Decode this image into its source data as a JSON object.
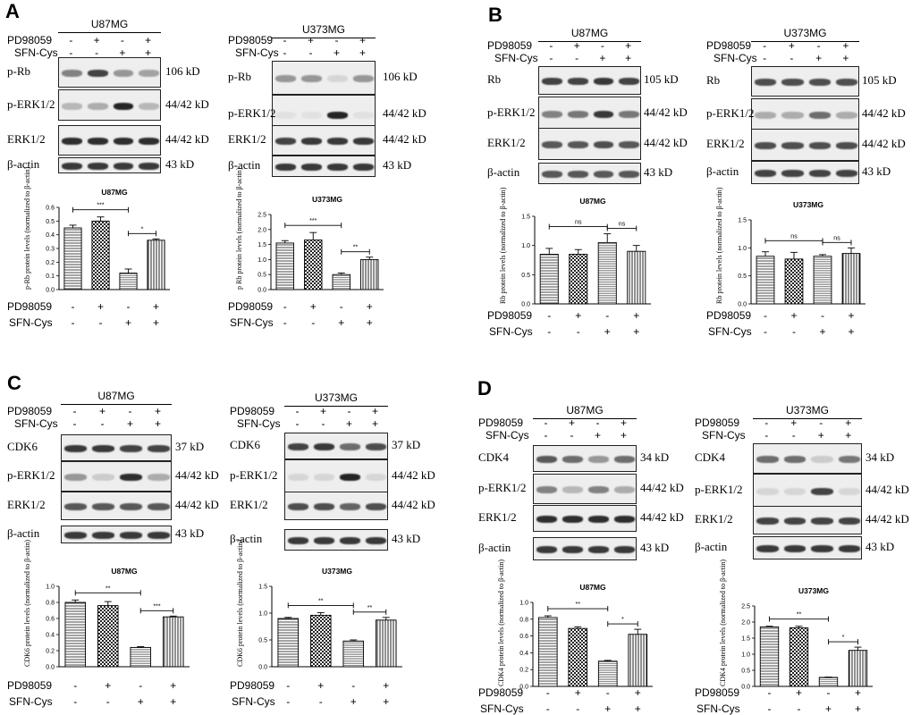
{
  "letters": [
    "A",
    "B",
    "C",
    "D"
  ],
  "panels": [
    {
      "letter": "A",
      "blots": [
        {
          "cell": "U87MG",
          "rows": [
            "p-Rb",
            "p-ERK1/2",
            "ERK1/2",
            "β-actin"
          ],
          "kd": [
            "106 kD",
            "44/42 kD",
            "44/42 kD",
            "43 kD"
          ]
        },
        {
          "cell": "U373MG",
          "rows": [
            "p-Rb",
            "p-ERK1/2",
            "ERK1/2",
            "β-actin"
          ],
          "kd": [
            "106 kD",
            "44/42 kD",
            "44/42 kD",
            "43 kD"
          ]
        }
      ]
    },
    {
      "letter": "B",
      "blots": [
        {
          "cell": "U87MG",
          "rows": [
            "Rb",
            "p-ERK1/2",
            "ERK1/2",
            "β-actin"
          ],
          "kd": [
            "105 kD",
            "44/42 kD",
            "44/42 kD",
            "43 kD"
          ]
        },
        {
          "cell": "U373MG",
          "rows": [
            "Rb",
            "p-ERK1/2",
            "ERK1/2",
            "β-actin"
          ],
          "kd": [
            "105 kD",
            "44/42 kD",
            "44/42 kD",
            "43 kD"
          ]
        }
      ]
    },
    {
      "letter": "C",
      "blots": [
        {
          "cell": "U87MG",
          "rows": [
            "CDK6",
            "p-ERK1/2",
            "ERK1/2",
            "β-actin"
          ],
          "kd": [
            "37 kD",
            "44/42 kD",
            "44/42 kD",
            "43 kD"
          ]
        },
        {
          "cell": "U373MG",
          "rows": [
            "CDK6",
            "p-ERK1/2",
            "ERK1/2",
            "β-actin"
          ],
          "kd": [
            "37 kD",
            "44/42 kD",
            "44/42 kD",
            "43 kD"
          ]
        }
      ]
    },
    {
      "letter": "D",
      "blots": [
        {
          "cell": "U87MG",
          "rows": [
            "CDK4",
            "p-ERK1/2",
            "ERK1/2",
            "β-actin"
          ],
          "kd": [
            "34 kD",
            "44/42 kD",
            "44/42 kD",
            "43 kD"
          ]
        },
        {
          "cell": "U373MG",
          "rows": [
            "CDK4",
            "p-ERK1/2",
            "ERK1/2",
            "β-actin"
          ],
          "kd": [
            "34 kD",
            "44/42 kD",
            "44/42 kD",
            "43 kD"
          ]
        }
      ]
    }
  ],
  "conditions": {
    "pd_label": "PD98059",
    "sfn_label": "SFN-Cys",
    "pd_signs": [
      "-",
      "+",
      "-",
      "+"
    ],
    "sfn_signs": [
      "-",
      "-",
      "+",
      "+"
    ]
  },
  "chart_data": [
    {
      "type": "bar",
      "title": "U87MG",
      "ylabel": "p-Rb protein levels (normalized to β-actin)",
      "yticks": [
        "0.0",
        "0.1",
        "0.2",
        "0.3",
        "0.4",
        "0.5",
        "0.6"
      ],
      "ylim": [
        0,
        0.6
      ],
      "values": [
        0.45,
        0.5,
        0.12,
        0.36
      ],
      "errors": [
        0.02,
        0.03,
        0.03,
        0.01
      ],
      "sig": [
        {
          "from": 0,
          "to": 2,
          "label": "***"
        },
        {
          "from": 2,
          "to": 3,
          "label": "*"
        }
      ]
    },
    {
      "type": "bar",
      "title": "U373MG",
      "ylabel": "p Rb protein levels (normalized to β-actin)",
      "yticks": [
        "0.0",
        "0.5",
        "1.0",
        "1.5",
        "2.0",
        "2.5"
      ],
      "ylim": [
        0,
        2.5
      ],
      "values": [
        1.55,
        1.65,
        0.5,
        1.0
      ],
      "errors": [
        0.08,
        0.25,
        0.05,
        0.08
      ],
      "sig": [
        {
          "from": 0,
          "to": 2,
          "label": "***"
        },
        {
          "from": 2,
          "to": 3,
          "label": "**"
        }
      ]
    },
    {
      "type": "bar",
      "title": "U87MG",
      "ylabel": "Rb protein levels (normalized to β-actin)",
      "yticks": [
        "0.0",
        "0.5",
        "1.0",
        "1.5"
      ],
      "ylim": [
        0,
        1.5
      ],
      "values": [
        0.85,
        0.85,
        1.05,
        0.9
      ],
      "errors": [
        0.1,
        0.08,
        0.15,
        0.1
      ],
      "sig": [
        {
          "from": 0,
          "to": 2,
          "label": "ns"
        },
        {
          "from": 2,
          "to": 3,
          "label": "ns"
        }
      ]
    },
    {
      "type": "bar",
      "title": "U373MG",
      "ylabel": "Rb protein levels (normalized to β-actin)",
      "yticks": [
        "0.0",
        "0.5",
        "1.0",
        "1.5"
      ],
      "ylim": [
        0,
        1.5
      ],
      "values": [
        0.85,
        0.8,
        0.85,
        0.9
      ],
      "errors": [
        0.08,
        0.12,
        0.03,
        0.1
      ],
      "sig": [
        {
          "from": 0,
          "to": 2,
          "label": "ns"
        },
        {
          "from": 2,
          "to": 3,
          "label": "ns"
        }
      ]
    },
    {
      "type": "bar",
      "title": "U87MG",
      "ylabel": "CDK6 protein levels (normalized to β-actin)",
      "yticks": [
        "0.0",
        "0.2",
        "0.4",
        "0.6",
        "0.8",
        "1.0"
      ],
      "ylim": [
        0,
        1.0
      ],
      "values": [
        0.8,
        0.76,
        0.24,
        0.62
      ],
      "errors": [
        0.03,
        0.05,
        0.01,
        0.01
      ],
      "sig": [
        {
          "from": 0,
          "to": 2,
          "label": "**"
        },
        {
          "from": 2,
          "to": 3,
          "label": "***"
        }
      ]
    },
    {
      "type": "bar",
      "title": "U373MG",
      "ylabel": "CDK6 protein levels (normalized to β-actin)",
      "yticks": [
        "0.0",
        "0.5",
        "1.0",
        "1.5"
      ],
      "ylim": [
        0,
        1.5
      ],
      "values": [
        0.9,
        0.96,
        0.48,
        0.87
      ],
      "errors": [
        0.02,
        0.05,
        0.02,
        0.05
      ],
      "sig": [
        {
          "from": 0,
          "to": 2,
          "label": "**"
        },
        {
          "from": 2,
          "to": 3,
          "label": "**"
        }
      ]
    },
    {
      "type": "bar",
      "title": "U87MG",
      "ylabel": "CDK4 protein levels (normalized to β-actin)",
      "yticks": [
        "0.0",
        "0.2",
        "0.4",
        "0.6",
        "0.8",
        "1.0"
      ],
      "ylim": [
        0,
        1.0
      ],
      "values": [
        0.82,
        0.69,
        0.3,
        0.62
      ],
      "errors": [
        0.02,
        0.02,
        0.01,
        0.06
      ],
      "sig": [
        {
          "from": 0,
          "to": 2,
          "label": "**"
        },
        {
          "from": 2,
          "to": 3,
          "label": "*"
        }
      ]
    },
    {
      "type": "bar",
      "title": "U373MG",
      "ylabel": "CDK4 protein levels (normalized to β-actin)",
      "yticks": [
        "0.0",
        "0.5",
        "1.0",
        "1.5",
        "2.0",
        "2.5"
      ],
      "ylim": [
        0,
        2.5
      ],
      "values": [
        1.85,
        1.82,
        0.28,
        1.12
      ],
      "errors": [
        0.02,
        0.05,
        0.01,
        0.1
      ],
      "sig": [
        {
          "from": 0,
          "to": 2,
          "label": "**"
        },
        {
          "from": 2,
          "to": 3,
          "label": "*"
        }
      ]
    }
  ]
}
